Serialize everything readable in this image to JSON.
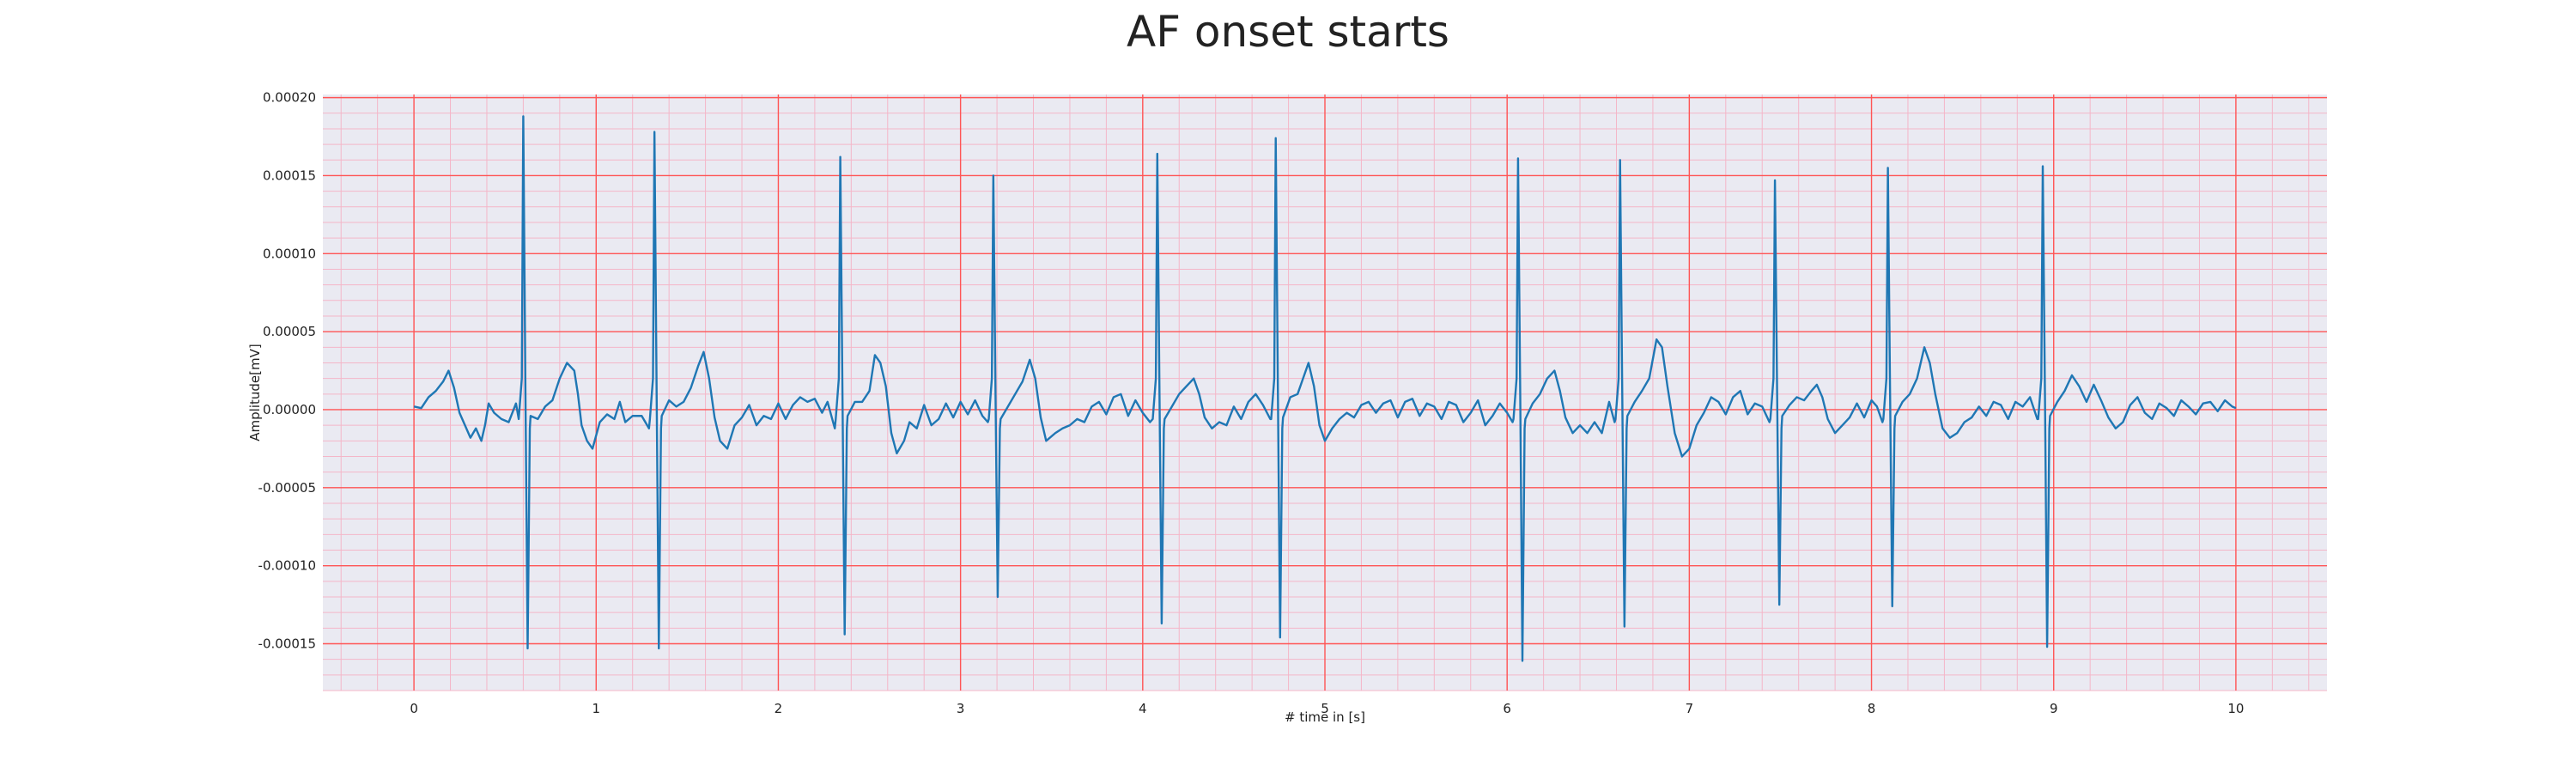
{
  "chart_data": {
    "type": "line",
    "title": "AF onset starts",
    "xlabel": "# time in [s]",
    "ylabel": "Amplitude[mV]",
    "xlim": [
      -0.5,
      10.5
    ],
    "ylim": [
      -0.00018,
      0.000202
    ],
    "xticks": [
      0,
      1,
      2,
      3,
      4,
      5,
      6,
      7,
      8,
      9,
      10
    ],
    "xtick_labels": [
      "0",
      "1",
      "2",
      "3",
      "4",
      "5",
      "6",
      "7",
      "8",
      "9",
      "10"
    ],
    "yticks": [
      0.0002,
      0.00015,
      0.0001,
      5e-05,
      0,
      -5e-05,
      -0.0001,
      -0.00015
    ],
    "ytick_labels": [
      "0.00020",
      "0.00015",
      "0.00010",
      "0.00005",
      "0.00000",
      "-0.00005",
      "-0.00010",
      "-0.00015"
    ],
    "grid": true,
    "major_grid_color": "#ff5555",
    "minor_grid_color": "#f4b6c8",
    "plot_background": "#eaeaf2",
    "line_color": "#1f77b4",
    "series": [
      {
        "beats": [
          {
            "t": 0.6,
            "peak": 0.000188,
            "trough": -0.000153
          },
          {
            "t": 1.32,
            "peak": 0.000178,
            "trough": -0.000153
          },
          {
            "t": 2.34,
            "peak": 0.000162,
            "trough": -0.000144
          },
          {
            "t": 3.18,
            "peak": 0.00015,
            "trough": -0.00012
          },
          {
            "t": 4.08,
            "peak": 0.000164,
            "trough": -0.000137
          },
          {
            "t": 4.73,
            "peak": 0.000174,
            "trough": -0.000146
          },
          {
            "t": 6.06,
            "peak": 0.000161,
            "trough": -0.000161
          },
          {
            "t": 6.62,
            "peak": 0.00016,
            "trough": -0.000139
          },
          {
            "t": 7.47,
            "peak": 0.000147,
            "trough": -0.000125
          },
          {
            "t": 8.09,
            "peak": 0.000155,
            "trough": -0.000126
          },
          {
            "t": 8.94,
            "peak": 0.000156,
            "trough": -0.000152
          }
        ],
        "baseline": [
          [
            0.0,
            2e-06
          ],
          [
            0.04,
            1e-06
          ],
          [
            0.08,
            8e-06
          ],
          [
            0.12,
            1.2e-05
          ],
          [
            0.16,
            1.8e-05
          ],
          [
            0.19,
            2.5e-05
          ],
          [
            0.22,
            1.4e-05
          ],
          [
            0.25,
            -2e-06
          ],
          [
            0.28,
            -1e-05
          ],
          [
            0.31,
            -1.8e-05
          ],
          [
            0.34,
            -1.2e-05
          ],
          [
            0.37,
            -2e-05
          ],
          [
            0.39,
            -1e-05
          ],
          [
            0.41,
            4e-06
          ],
          [
            0.44,
            -2e-06
          ],
          [
            0.48,
            -6e-06
          ],
          [
            0.52,
            -8e-06
          ],
          [
            0.56,
            4e-06
          ],
          [
            0.64,
            -4e-06
          ],
          [
            0.68,
            -6e-06
          ],
          [
            0.72,
            2e-06
          ],
          [
            0.76,
            6e-06
          ],
          [
            0.8,
            2e-05
          ],
          [
            0.84,
            3e-05
          ],
          [
            0.88,
            2.5e-05
          ],
          [
            0.9,
            1e-05
          ],
          [
            0.92,
            -1e-05
          ],
          [
            0.95,
            -2e-05
          ],
          [
            0.98,
            -2.5e-05
          ],
          [
            1.02,
            -8e-06
          ],
          [
            1.06,
            -3e-06
          ],
          [
            1.1,
            -6e-06
          ],
          [
            1.13,
            5e-06
          ],
          [
            1.16,
            -8e-06
          ],
          [
            1.2,
            -4e-06
          ],
          [
            1.25,
            -4e-06
          ],
          [
            1.29,
            -1.2e-05
          ],
          [
            1.36,
            -4e-06
          ],
          [
            1.4,
            6e-06
          ],
          [
            1.44,
            2e-06
          ],
          [
            1.48,
            5e-06
          ],
          [
            1.52,
            1.4e-05
          ],
          [
            1.56,
            2.8e-05
          ],
          [
            1.59,
            3.7e-05
          ],
          [
            1.62,
            2e-05
          ],
          [
            1.65,
            -5e-06
          ],
          [
            1.68,
            -2e-05
          ],
          [
            1.72,
            -2.5e-05
          ],
          [
            1.76,
            -1e-05
          ],
          [
            1.8,
            -5e-06
          ],
          [
            1.84,
            3e-06
          ],
          [
            1.88,
            -1e-05
          ],
          [
            1.92,
            -4e-06
          ],
          [
            1.96,
            -6e-06
          ],
          [
            2.0,
            4e-06
          ],
          [
            2.04,
            -6e-06
          ],
          [
            2.08,
            3e-06
          ],
          [
            2.12,
            8e-06
          ],
          [
            2.16,
            5e-06
          ],
          [
            2.2,
            7e-06
          ],
          [
            2.24,
            -2e-06
          ],
          [
            2.27,
            5e-06
          ],
          [
            2.31,
            -1.2e-05
          ],
          [
            2.38,
            -4e-06
          ],
          [
            2.42,
            5e-06
          ],
          [
            2.46,
            5e-06
          ],
          [
            2.5,
            1.2e-05
          ],
          [
            2.53,
            3.5e-05
          ],
          [
            2.56,
            3e-05
          ],
          [
            2.59,
            1.5e-05
          ],
          [
            2.62,
            -1.5e-05
          ],
          [
            2.65,
            -2.8e-05
          ],
          [
            2.69,
            -2e-05
          ],
          [
            2.72,
            -8e-06
          ],
          [
            2.76,
            -1.2e-05
          ],
          [
            2.8,
            3e-06
          ],
          [
            2.84,
            -1e-05
          ],
          [
            2.88,
            -6e-06
          ],
          [
            2.92,
            4e-06
          ],
          [
            2.96,
            -5e-06
          ],
          [
            3.0,
            5e-06
          ],
          [
            3.04,
            -3e-06
          ],
          [
            3.08,
            6e-06
          ],
          [
            3.12,
            -4e-06
          ],
          [
            3.15,
            -8e-06
          ],
          [
            3.22,
            -6e-06
          ],
          [
            3.26,
            2e-06
          ],
          [
            3.3,
            1e-05
          ],
          [
            3.34,
            1.8e-05
          ],
          [
            3.38,
            3.2e-05
          ],
          [
            3.41,
            2e-05
          ],
          [
            3.44,
            -5e-06
          ],
          [
            3.47,
            -2e-05
          ],
          [
            3.52,
            -1.5e-05
          ],
          [
            3.56,
            -1.2e-05
          ],
          [
            3.6,
            -1e-05
          ],
          [
            3.64,
            -6e-06
          ],
          [
            3.68,
            -8e-06
          ],
          [
            3.72,
            2e-06
          ],
          [
            3.76,
            5e-06
          ],
          [
            3.8,
            -3e-06
          ],
          [
            3.84,
            8e-06
          ],
          [
            3.88,
            1e-05
          ],
          [
            3.92,
            -4e-06
          ],
          [
            3.96,
            6e-06
          ],
          [
            4.0,
            -2e-06
          ],
          [
            4.04,
            -8e-06
          ],
          [
            4.12,
            -6e-06
          ],
          [
            4.16,
            2e-06
          ],
          [
            4.2,
            1e-05
          ],
          [
            4.24,
            1.5e-05
          ],
          [
            4.28,
            2e-05
          ],
          [
            4.31,
            1e-05
          ],
          [
            4.34,
            -5e-06
          ],
          [
            4.38,
            -1.2e-05
          ],
          [
            4.42,
            -8e-06
          ],
          [
            4.46,
            -1e-05
          ],
          [
            4.5,
            2e-06
          ],
          [
            4.54,
            -6e-06
          ],
          [
            4.58,
            5e-06
          ],
          [
            4.62,
            1e-05
          ],
          [
            4.66,
            3e-06
          ],
          [
            4.7,
            -6e-06
          ],
          [
            4.77,
            -5e-06
          ],
          [
            4.81,
            8e-06
          ],
          [
            4.85,
            1e-05
          ],
          [
            4.88,
            2e-05
          ],
          [
            4.91,
            3e-05
          ],
          [
            4.94,
            1.5e-05
          ],
          [
            4.97,
            -1e-05
          ],
          [
            5.0,
            -2e-05
          ],
          [
            5.04,
            -1.2e-05
          ],
          [
            5.08,
            -6e-06
          ],
          [
            5.12,
            -2e-06
          ],
          [
            5.16,
            -5e-06
          ],
          [
            5.2,
            3e-06
          ],
          [
            5.24,
            5e-06
          ],
          [
            5.28,
            -2e-06
          ],
          [
            5.32,
            4e-06
          ],
          [
            5.36,
            6e-06
          ],
          [
            5.4,
            -5e-06
          ],
          [
            5.44,
            5e-06
          ],
          [
            5.48,
            7e-06
          ],
          [
            5.52,
            -4e-06
          ],
          [
            5.56,
            4e-06
          ],
          [
            5.6,
            2e-06
          ],
          [
            5.64,
            -6e-06
          ],
          [
            5.68,
            5e-06
          ],
          [
            5.72,
            3e-06
          ],
          [
            5.76,
            -8e-06
          ],
          [
            5.8,
            -2e-06
          ],
          [
            5.84,
            6e-06
          ],
          [
            5.88,
            -1e-05
          ],
          [
            5.92,
            -4e-06
          ],
          [
            5.96,
            4e-06
          ],
          [
            6.0,
            -2e-06
          ],
          [
            6.03,
            -8e-06
          ],
          [
            6.1,
            -6e-06
          ],
          [
            6.14,
            4e-06
          ],
          [
            6.18,
            1e-05
          ],
          [
            6.22,
            2e-05
          ],
          [
            6.26,
            2.5e-05
          ],
          [
            6.29,
            1.2e-05
          ],
          [
            6.32,
            -5e-06
          ],
          [
            6.36,
            -1.5e-05
          ],
          [
            6.4,
            -1e-05
          ],
          [
            6.44,
            -1.5e-05
          ],
          [
            6.48,
            -8e-06
          ],
          [
            6.52,
            -1.5e-05
          ],
          [
            6.56,
            5e-06
          ],
          [
            6.59,
            -8e-06
          ],
          [
            6.66,
            -4e-06
          ],
          [
            6.7,
            5e-06
          ],
          [
            6.74,
            1.2e-05
          ],
          [
            6.78,
            2e-05
          ],
          [
            6.82,
            4.5e-05
          ],
          [
            6.85,
            4e-05
          ],
          [
            6.88,
            1.5e-05
          ],
          [
            6.92,
            -1.5e-05
          ],
          [
            6.96,
            -3e-05
          ],
          [
            7.0,
            -2.5e-05
          ],
          [
            7.04,
            -1e-05
          ],
          [
            7.08,
            -2e-06
          ],
          [
            7.12,
            8e-06
          ],
          [
            7.16,
            5e-06
          ],
          [
            7.2,
            -3e-06
          ],
          [
            7.24,
            8e-06
          ],
          [
            7.28,
            1.2e-05
          ],
          [
            7.32,
            -3e-06
          ],
          [
            7.36,
            4e-06
          ],
          [
            7.4,
            2e-06
          ],
          [
            7.44,
            -8e-06
          ],
          [
            7.51,
            -4e-06
          ],
          [
            7.55,
            3e-06
          ],
          [
            7.59,
            8e-06
          ],
          [
            7.63,
            6e-06
          ],
          [
            7.67,
            1.2e-05
          ],
          [
            7.7,
            1.6e-05
          ],
          [
            7.73,
            8e-06
          ],
          [
            7.76,
            -6e-06
          ],
          [
            7.8,
            -1.5e-05
          ],
          [
            7.84,
            -1e-05
          ],
          [
            7.88,
            -5e-06
          ],
          [
            7.92,
            4e-06
          ],
          [
            7.96,
            -5e-06
          ],
          [
            8.0,
            6e-06
          ],
          [
            8.03,
            2e-06
          ],
          [
            8.06,
            -8e-06
          ],
          [
            8.13,
            -4e-06
          ],
          [
            8.17,
            5e-06
          ],
          [
            8.21,
            1e-05
          ],
          [
            8.25,
            2e-05
          ],
          [
            8.29,
            4e-05
          ],
          [
            8.32,
            3e-05
          ],
          [
            8.35,
            1e-05
          ],
          [
            8.39,
            -1.2e-05
          ],
          [
            8.43,
            -1.8e-05
          ],
          [
            8.47,
            -1.5e-05
          ],
          [
            8.51,
            -8e-06
          ],
          [
            8.55,
            -5e-06
          ],
          [
            8.59,
            2e-06
          ],
          [
            8.63,
            -4e-06
          ],
          [
            8.67,
            5e-06
          ],
          [
            8.71,
            3e-06
          ],
          [
            8.75,
            -6e-06
          ],
          [
            8.79,
            5e-06
          ],
          [
            8.83,
            2e-06
          ],
          [
            8.87,
            8e-06
          ],
          [
            8.91,
            -6e-06
          ],
          [
            8.98,
            -4e-06
          ],
          [
            9.02,
            5e-06
          ],
          [
            9.06,
            1.2e-05
          ],
          [
            9.1,
            2.2e-05
          ],
          [
            9.14,
            1.5e-05
          ],
          [
            9.18,
            5e-06
          ],
          [
            9.22,
            1.6e-05
          ],
          [
            9.26,
            6e-06
          ],
          [
            9.3,
            -5e-06
          ],
          [
            9.34,
            -1.2e-05
          ],
          [
            9.38,
            -8e-06
          ],
          [
            9.42,
            3e-06
          ],
          [
            9.46,
            8e-06
          ],
          [
            9.5,
            -2e-06
          ],
          [
            9.54,
            -6e-06
          ],
          [
            9.58,
            4e-06
          ],
          [
            9.62,
            1e-06
          ],
          [
            9.66,
            -4e-06
          ],
          [
            9.7,
            6e-06
          ],
          [
            9.74,
            2e-06
          ],
          [
            9.78,
            -3e-06
          ],
          [
            9.82,
            4e-06
          ],
          [
            9.86,
            5e-06
          ],
          [
            9.9,
            -1e-06
          ],
          [
            9.94,
            6e-06
          ],
          [
            9.98,
            2e-06
          ],
          [
            10.0,
            1e-06
          ]
        ]
      }
    ]
  }
}
